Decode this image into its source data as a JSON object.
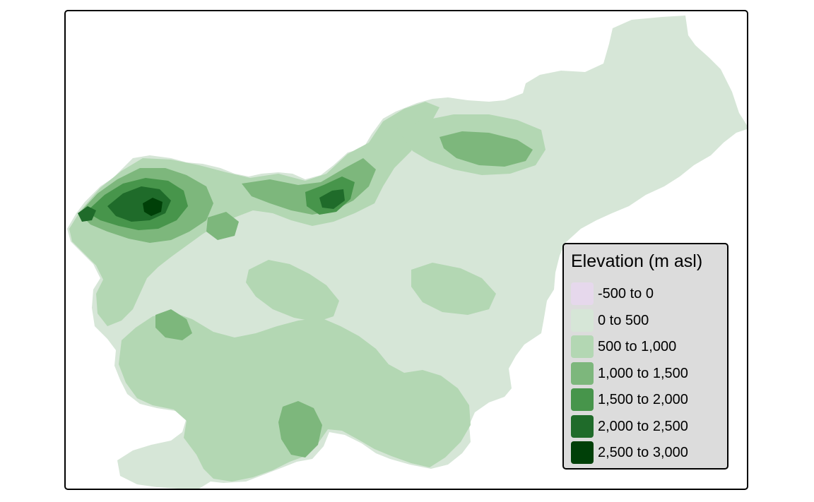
{
  "map": {
    "region": "Slovenia",
    "theme": "elevation"
  },
  "legend": {
    "title": "Elevation (m asl)",
    "classes": [
      {
        "label": "-500 to 0",
        "color": "#e6d8ec"
      },
      {
        "label": "0 to 500",
        "color": "#d6e6d7"
      },
      {
        "label": "500 to 1,000",
        "color": "#b3d7b3"
      },
      {
        "label": "1,000 to 1,500",
        "color": "#7db77c"
      },
      {
        "label": "1,500 to 2,000",
        "color": "#47954b"
      },
      {
        "label": "2,000 to 2,500",
        "color": "#1f6b2a"
      },
      {
        "label": "2,500 to 3,000",
        "color": "#004008"
      }
    ]
  }
}
